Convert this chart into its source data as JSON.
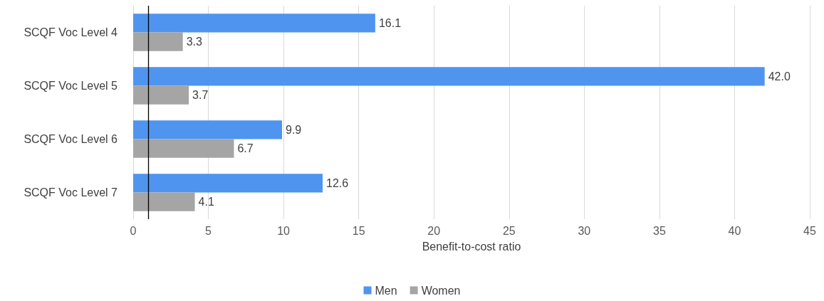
{
  "chart_data": {
    "type": "bar",
    "orientation": "horizontal",
    "xlabel": "Benefit-to-cost ratio",
    "categories": [
      "SCQF Voc Level 4",
      "SCQF Voc Level 5",
      "SCQF Voc Level 6",
      "SCQF Voc Level 7"
    ],
    "series": [
      {
        "name": "Men",
        "color": "#4f94ef",
        "values": [
          16.1,
          42.0,
          9.9,
          12.6
        ],
        "value_labels": [
          "16.1",
          "42.0",
          "9.9",
          "12.6"
        ]
      },
      {
        "name": "Women",
        "color": "#a5a5a5",
        "values": [
          3.3,
          3.7,
          6.7,
          4.1
        ],
        "value_labels": [
          "3.3",
          "3.7",
          "6.7",
          "4.1"
        ]
      }
    ],
    "xlim": [
      0,
      45
    ],
    "xticks": [
      0,
      5,
      10,
      15,
      20,
      25,
      30,
      35,
      40,
      45
    ],
    "ref_lines": [
      {
        "axis": "x",
        "value": 1,
        "color": "#000000"
      }
    ],
    "grid": "x",
    "legend": "bottom"
  }
}
